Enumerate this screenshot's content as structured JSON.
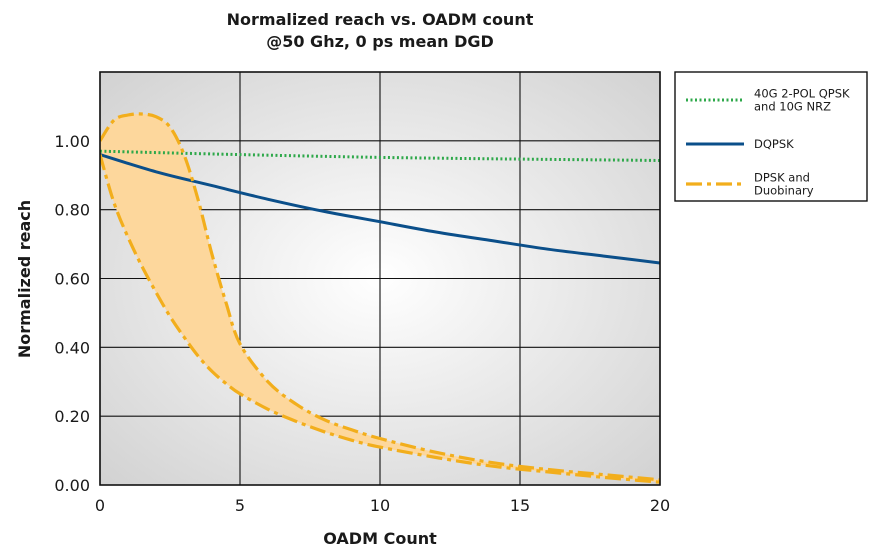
{
  "chart_data": {
    "type": "line",
    "title": "Normalized reach vs. OADM count",
    "subtitle": "@50 Ghz, 0 ps mean DGD",
    "xlabel": "OADM Count",
    "ylabel": "Normalized reach",
    "xlim": [
      0,
      20
    ],
    "ylim": [
      0,
      1.2
    ],
    "x_ticks": [
      "0",
      "5",
      "10",
      "15",
      "20"
    ],
    "y_ticks": [
      "0.00",
      "0.20",
      "0.40",
      "0.60",
      "0.80",
      "1.00"
    ],
    "y_tick_values": [
      0,
      0.2,
      0.4,
      0.6,
      0.8,
      1.0
    ],
    "grid": true,
    "legend_position": "right",
    "series": [
      {
        "name": "40G 2-POL QPSK and 10G NRZ",
        "legend_lines": [
          "40G 2-POL QPSK",
          "and 10G NRZ"
        ],
        "style": "dotted",
        "color": "#2ea84a",
        "x": [
          0,
          5,
          10,
          15,
          20
        ],
        "y": [
          0.97,
          0.96,
          0.952,
          0.947,
          0.943
        ]
      },
      {
        "name": "DQPSK",
        "legend_lines": [
          "DQPSK"
        ],
        "style": "solid",
        "color": "#0b4f8a",
        "x": [
          0,
          2,
          4,
          6,
          8,
          10,
          12,
          14,
          16,
          18,
          20
        ],
        "y": [
          0.96,
          0.91,
          0.87,
          0.83,
          0.795,
          0.765,
          0.735,
          0.71,
          0.685,
          0.665,
          0.645
        ]
      },
      {
        "name": "DPSK and Duobinary",
        "legend_lines": [
          "DPSK and",
          "Duobinary"
        ],
        "style": "dash-dot",
        "color": "#f2ae1c",
        "fill": "#fdd79c",
        "x": [
          0,
          0.5,
          1,
          1.5,
          2,
          2.5,
          3,
          3.5,
          4,
          4.5,
          5,
          6,
          7,
          8,
          9,
          10,
          12,
          14,
          16,
          18,
          20
        ],
        "upper": [
          1.0,
          1.06,
          1.075,
          1.078,
          1.07,
          1.04,
          0.96,
          0.83,
          0.67,
          0.53,
          0.41,
          0.3,
          0.235,
          0.19,
          0.16,
          0.135,
          0.095,
          0.065,
          0.045,
          0.03,
          0.015
        ],
        "lower": [
          0.96,
          0.82,
          0.72,
          0.635,
          0.56,
          0.49,
          0.43,
          0.375,
          0.33,
          0.295,
          0.265,
          0.22,
          0.185,
          0.155,
          0.13,
          0.11,
          0.08,
          0.055,
          0.038,
          0.022,
          0.008
        ]
      }
    ]
  },
  "colors": {
    "background_gradient_center": "#ffffff",
    "background_gradient_edge": "#cfcfcf",
    "grid": "#111111"
  }
}
